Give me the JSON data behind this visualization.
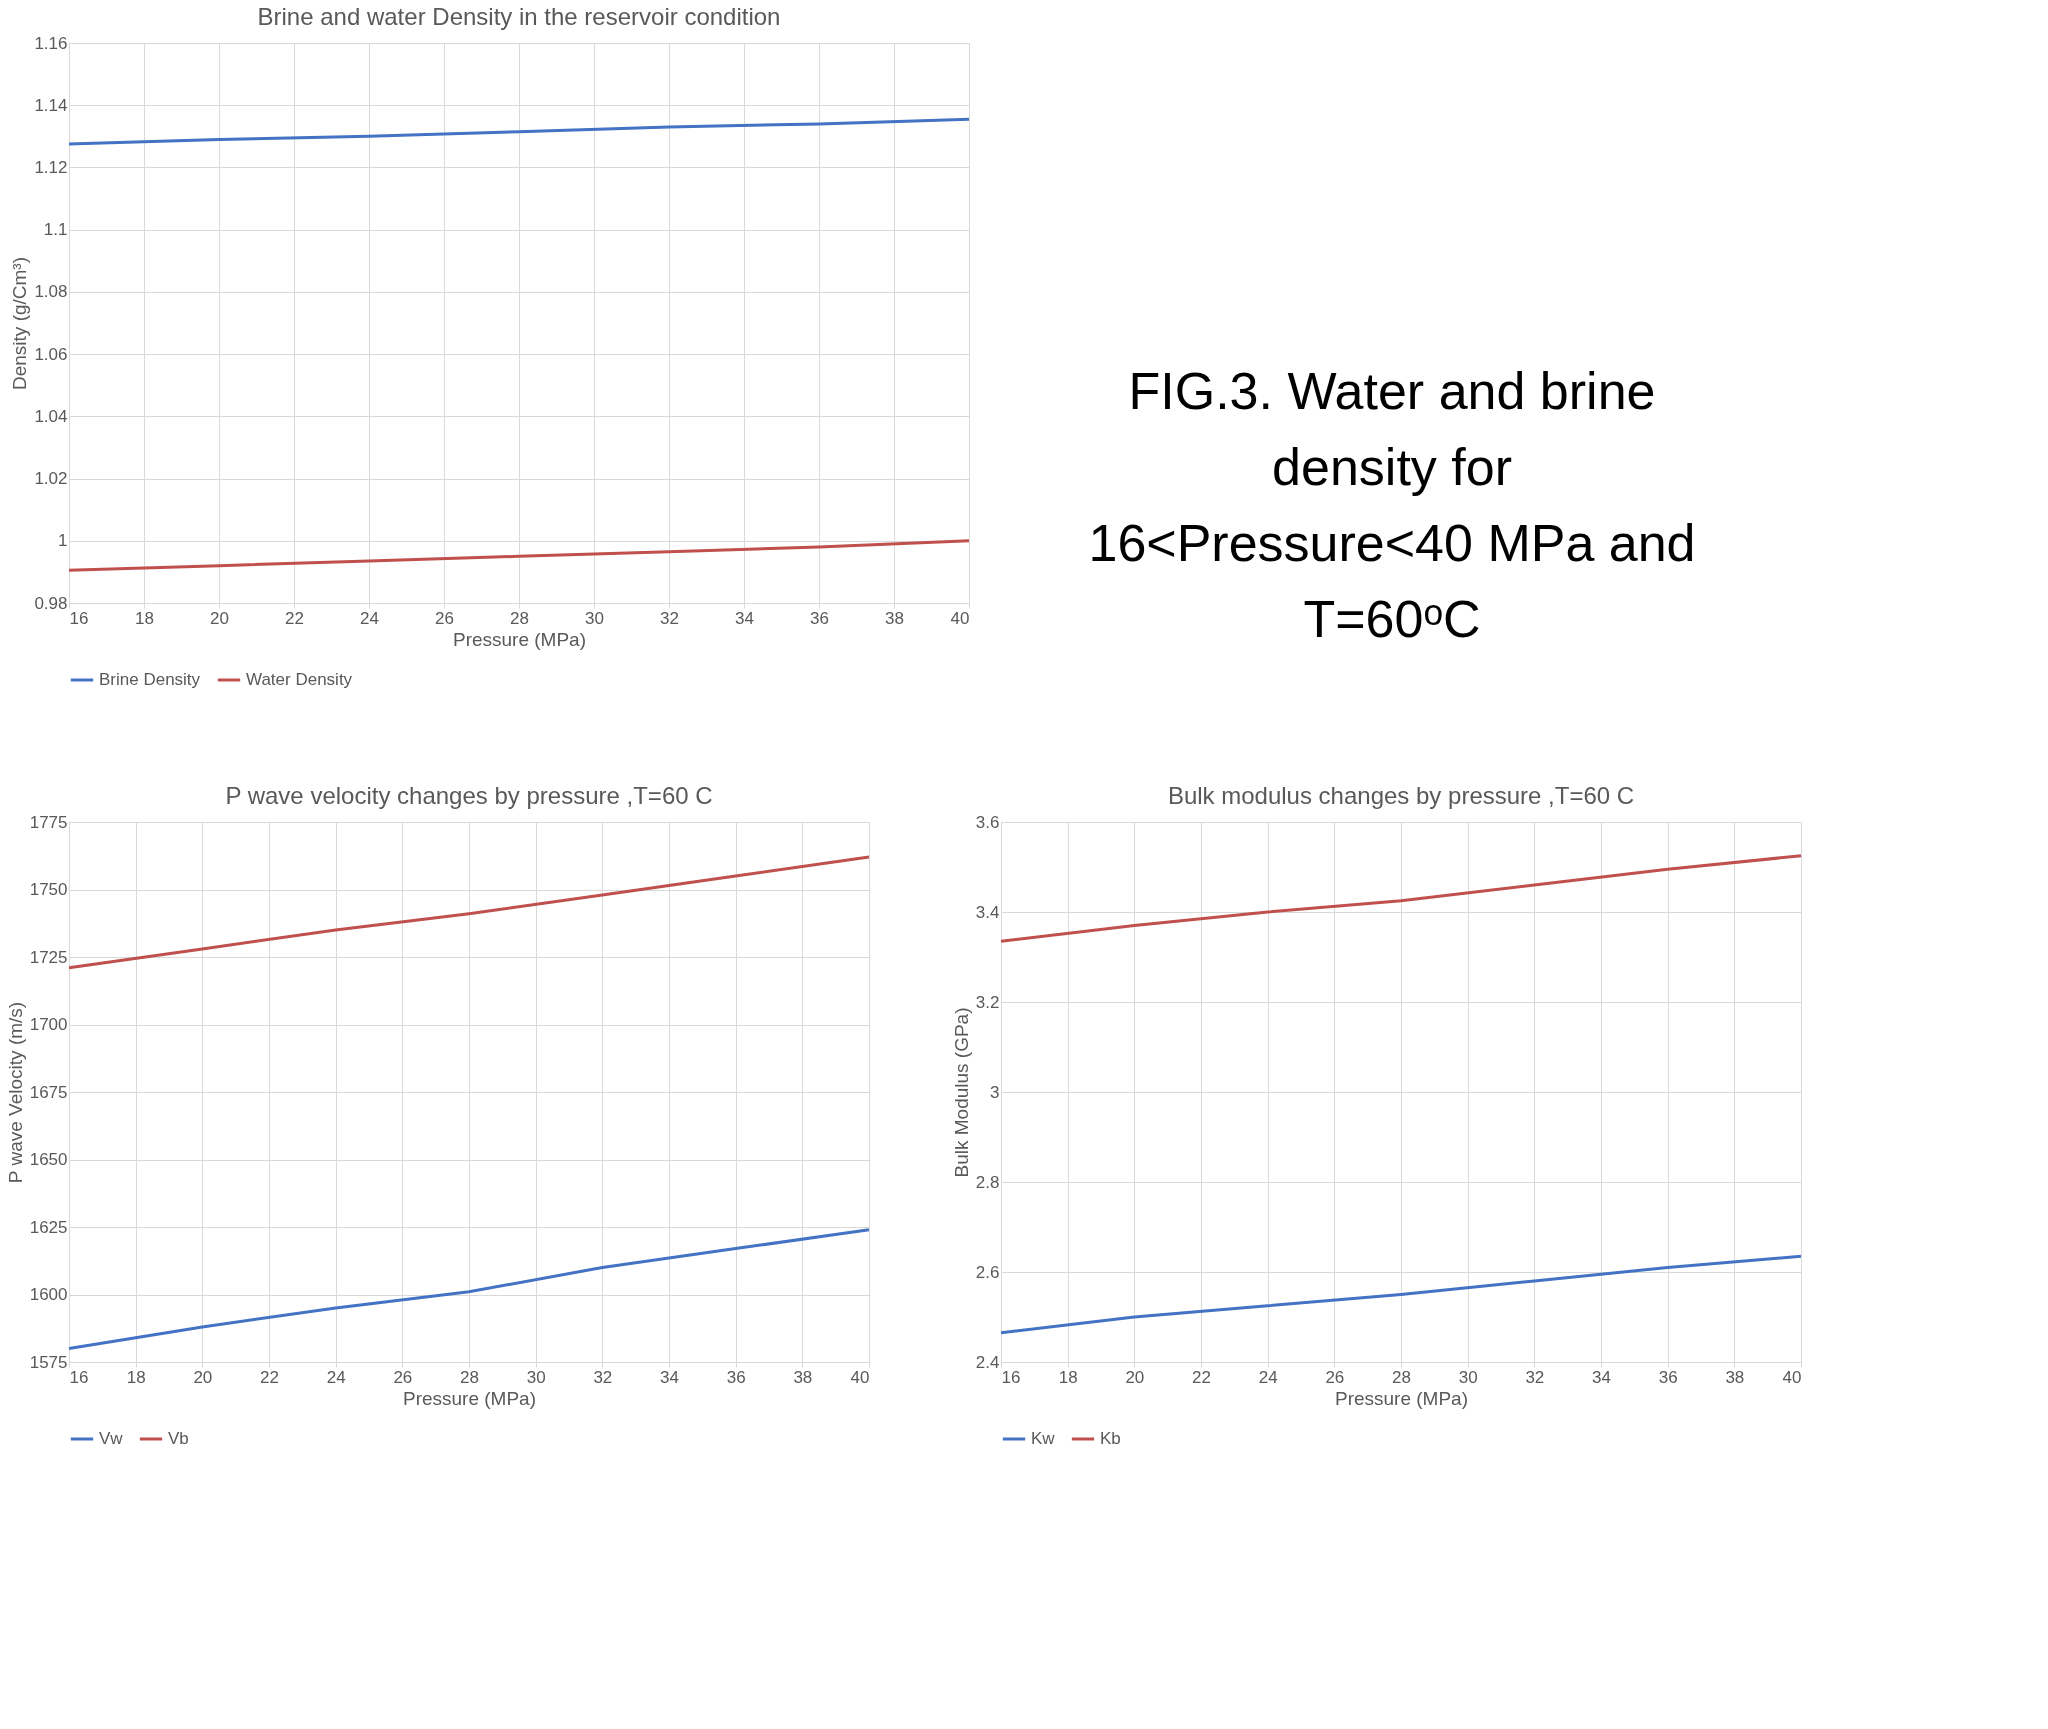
{
  "chart_data": [
    {
      "type": "line",
      "title": "Brine and water Density in the reservoir condition",
      "xlabel": "Pressure (MPa)",
      "ylabel": "Density (g/Cm³)",
      "x": [
        16,
        20,
        24,
        28,
        32,
        36,
        40
      ],
      "series": [
        {
          "name": "Brine Density",
          "color": "#4472c4",
          "values": [
            1.1275,
            1.129,
            1.13,
            1.1315,
            1.133,
            1.134,
            1.1355
          ]
        },
        {
          "name": "Water Density",
          "color": "#c0504d",
          "values": [
            0.9905,
            0.992,
            0.9935,
            0.995,
            0.9965,
            0.998,
            1.0
          ]
        }
      ],
      "xlim": [
        16,
        40
      ],
      "xticks": [
        16,
        18,
        20,
        22,
        24,
        26,
        28,
        30,
        32,
        34,
        36,
        38,
        40
      ],
      "ylim": [
        0.98,
        1.16
      ],
      "yticks": [
        0.98,
        1,
        1.02,
        1.04,
        1.06,
        1.08,
        1.1,
        1.12,
        1.14,
        1.16
      ],
      "grid": true,
      "legend": "bottom"
    },
    {
      "type": "other",
      "title": "FIG.3. Water and brine density for 16<Pressure<40 MPa and T=60ᵒC"
    },
    {
      "type": "line",
      "title": "P wave velocity changes by pressure ,T=60 C",
      "xlabel": "Pressure (MPa)",
      "ylabel": "P wave Velocity (m/s)",
      "x": [
        16,
        20,
        24,
        28,
        32,
        36,
        40
      ],
      "series": [
        {
          "name": "Vw",
          "color": "#4472c4",
          "values": [
            1580,
            1588,
            1595,
            1601,
            1610,
            1617,
            1624
          ]
        },
        {
          "name": "Vb",
          "color": "#c0504d",
          "values": [
            1721,
            1728,
            1735,
            1741,
            1748,
            1755,
            1762
          ]
        }
      ],
      "xlim": [
        16,
        40
      ],
      "xticks": [
        16,
        18,
        20,
        22,
        24,
        26,
        28,
        30,
        32,
        34,
        36,
        38,
        40
      ],
      "ylim": [
        1575,
        1775
      ],
      "yticks": [
        1575,
        1600,
        1625,
        1650,
        1675,
        1700,
        1725,
        1750,
        1775
      ],
      "grid": true,
      "legend": "bottom"
    },
    {
      "type": "line",
      "title": "Bulk modulus changes by pressure ,T=60 C",
      "xlabel": "Pressure (MPa)",
      "ylabel": "Bulk Modulus (GPa)",
      "x": [
        16,
        20,
        24,
        28,
        32,
        36,
        40
      ],
      "series": [
        {
          "name": "Kw",
          "color": "#4472c4",
          "values": [
            2.465,
            2.5,
            2.525,
            2.55,
            2.58,
            2.61,
            2.635
          ]
        },
        {
          "name": "Kb",
          "color": "#c0504d",
          "values": [
            3.335,
            3.37,
            3.4,
            3.425,
            3.46,
            3.495,
            3.525
          ]
        }
      ],
      "xlim": [
        16,
        40
      ],
      "xticks": [
        16,
        18,
        20,
        22,
        24,
        26,
        28,
        30,
        32,
        34,
        36,
        38,
        40
      ],
      "ylim": [
        2.4,
        3.6
      ],
      "yticks": [
        2.4,
        2.6,
        2.8,
        3,
        3.2,
        3.4,
        3.6
      ],
      "grid": true,
      "legend": "bottom"
    }
  ]
}
